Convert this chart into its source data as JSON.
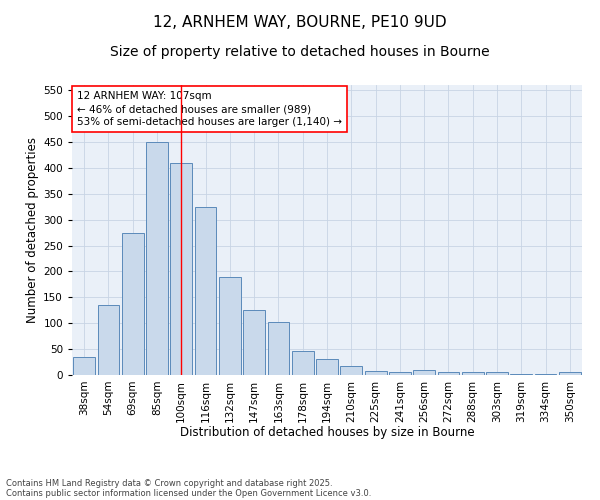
{
  "title_line1": "12, ARNHEM WAY, BOURNE, PE10 9UD",
  "title_line2": "Size of property relative to detached houses in Bourne",
  "xlabel": "Distribution of detached houses by size in Bourne",
  "ylabel": "Number of detached properties",
  "categories": [
    "38sqm",
    "54sqm",
    "69sqm",
    "85sqm",
    "100sqm",
    "116sqm",
    "132sqm",
    "147sqm",
    "163sqm",
    "178sqm",
    "194sqm",
    "210sqm",
    "225sqm",
    "241sqm",
    "256sqm",
    "272sqm",
    "288sqm",
    "303sqm",
    "319sqm",
    "334sqm",
    "350sqm"
  ],
  "values": [
    35,
    135,
    275,
    450,
    410,
    325,
    190,
    125,
    103,
    46,
    30,
    18,
    8,
    5,
    10,
    5,
    5,
    5,
    2,
    2,
    6
  ],
  "bar_color": "#c9d9eb",
  "bar_edge_color": "#5b8aba",
  "grid_color": "#c8d4e4",
  "background_color": "#eaf0f8",
  "annotation_line1": "12 ARNHEM WAY: 107sqm",
  "annotation_line2": "← 46% of detached houses are smaller (989)",
  "annotation_line3": "53% of semi-detached houses are larger (1,140) →",
  "vline_x_index": 4,
  "ylim": [
    0,
    560
  ],
  "yticks": [
    0,
    50,
    100,
    150,
    200,
    250,
    300,
    350,
    400,
    450,
    500,
    550
  ],
  "footnote_line1": "Contains HM Land Registry data © Crown copyright and database right 2025.",
  "footnote_line2": "Contains public sector information licensed under the Open Government Licence v3.0.",
  "title_fontsize": 11,
  "subtitle_fontsize": 10,
  "axis_label_fontsize": 8.5,
  "tick_fontsize": 7.5,
  "annotation_fontsize": 7.5,
  "footnote_fontsize": 6.0
}
